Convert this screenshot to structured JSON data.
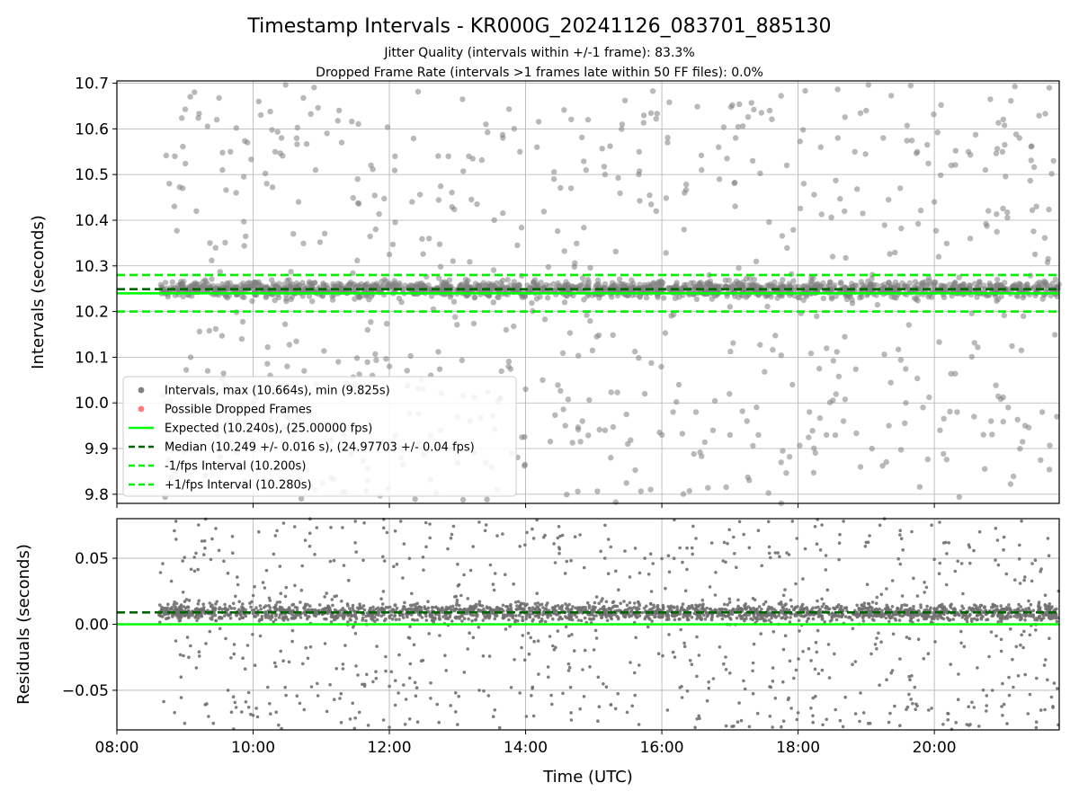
{
  "figure": {
    "title": "Timestamp Intervals - KR000G_20241126_083701_885130",
    "subtitle_1": "Jitter Quality (intervals within +/-1 frame): 83.3%",
    "subtitle_2": "Dropped Frame Rate (intervals >1 frames late within 50 FF files): 0.0%",
    "colors": {
      "points": "#808080",
      "dropped": "#ff4d4d",
      "expected": "#00ff00",
      "median": "#006400",
      "fps_band": "#00ee00",
      "grid": "#b0b0b0"
    }
  },
  "chart_data": [
    {
      "type": "scatter",
      "panel": "intervals",
      "xlabel": "",
      "ylabel": "Intervals (seconds)",
      "xlim": [
        "08:00",
        "21:50"
      ],
      "ylim": [
        9.78,
        10.705
      ],
      "xticks": [
        "08:00",
        "10:00",
        "12:00",
        "14:00",
        "16:00",
        "18:00",
        "20:00"
      ],
      "xticklabels_visible": false,
      "yticks": [
        9.8,
        9.9,
        10.0,
        10.1,
        10.2,
        10.3,
        10.4,
        10.5,
        10.6,
        10.7
      ],
      "yticklabels": [
        "9.8",
        "9.9",
        "10.0",
        "10.1",
        "10.2",
        "10.3",
        "10.4",
        "10.5",
        "10.6",
        "10.7"
      ],
      "grid": true,
      "legend_position": "lower-left",
      "x_range_of_points": [
        "08:37",
        "21:50"
      ],
      "series": [
        {
          "name": "Intervals, max (10.664s), min (9.825s)",
          "kind": "scatter",
          "color": "#808080",
          "max": 10.664,
          "min": 9.825,
          "cluster_center": 10.249,
          "cluster_spread": 0.016,
          "points": [
            [
              "08:51",
              10.54
            ],
            [
              "08:58",
              10.47
            ],
            [
              "09:10",
              10.42
            ],
            [
              "09:22",
              10.35
            ],
            [
              "09:28",
              10.62
            ],
            [
              "09:33",
              10.51
            ],
            [
              "09:40",
              10.55
            ],
            [
              "09:45",
              10.46
            ],
            [
              "09:55",
              10.57
            ],
            [
              "10:05",
              10.66
            ],
            [
              "10:12",
              10.48
            ],
            [
              "10:25",
              10.58
            ],
            [
              "10:40",
              10.44
            ],
            [
              "10:55",
              10.51
            ],
            [
              "11:05",
              10.59
            ],
            [
              "11:18",
              10.57
            ],
            [
              "11:32",
              10.49
            ],
            [
              "11:48",
              10.38
            ],
            [
              "12:05",
              10.54
            ],
            [
              "12:20",
              10.44
            ],
            [
              "12:35",
              10.36
            ],
            [
              "12:52",
              10.54
            ],
            [
              "13:10",
              10.54
            ],
            [
              "13:25",
              10.61
            ],
            [
              "13:40",
              10.58
            ],
            [
              "13:55",
              10.55
            ],
            [
              "14:10",
              10.56
            ],
            [
              "14:25",
              10.49
            ],
            [
              "14:40",
              10.47
            ],
            [
              "14:55",
              10.62
            ],
            [
              "15:10",
              10.5
            ],
            [
              "15:25",
              10.61
            ],
            [
              "15:40",
              10.55
            ],
            [
              "15:55",
              10.42
            ],
            [
              "16:05",
              10.57
            ],
            [
              "16:20",
              10.46
            ],
            [
              "16:35",
              10.51
            ],
            [
              "16:50",
              10.56
            ],
            [
              "17:05",
              10.58
            ],
            [
              "17:20",
              10.53
            ],
            [
              "17:35",
              10.64
            ],
            [
              "17:50",
              10.52
            ],
            [
              "18:05",
              10.48
            ],
            [
              "18:20",
              10.56
            ],
            [
              "18:35",
              10.58
            ],
            [
              "18:50",
              10.55
            ],
            [
              "19:00",
              10.64
            ],
            [
              "19:15",
              10.58
            ],
            [
              "19:30",
              10.47
            ],
            [
              "19:45",
              10.55
            ],
            [
              "20:00",
              10.44
            ],
            [
              "20:15",
              10.52
            ],
            [
              "20:30",
              10.55
            ],
            [
              "20:45",
              10.51
            ],
            [
              "21:00",
              10.55
            ],
            [
              "21:15",
              10.58
            ],
            [
              "21:30",
              10.43
            ],
            [
              "21:45",
              10.53
            ],
            [
              "09:05",
              10.1
            ],
            [
              "09:20",
              10.07
            ],
            [
              "09:35",
              10.04
            ],
            [
              "09:50",
              10.14
            ],
            [
              "10:00",
              10.0
            ],
            [
              "10:15",
              10.06
            ],
            [
              "10:30",
              10.08
            ],
            [
              "10:45",
              10.07
            ],
            [
              "11:00",
              10.02
            ],
            [
              "11:15",
              10.09
            ],
            [
              "11:30",
              10.04
            ],
            [
              "11:45",
              10.06
            ],
            [
              "12:00",
              10.08
            ],
            [
              "12:10",
              9.88
            ],
            [
              "12:30",
              10.03
            ],
            [
              "12:45",
              9.94
            ],
            [
              "13:00",
              9.97
            ],
            [
              "13:15",
              9.89
            ],
            [
              "13:25",
              9.87
            ],
            [
              "13:30",
              9.86
            ],
            [
              "13:45",
              10.08
            ],
            [
              "14:00",
              10.03
            ],
            [
              "14:15",
              10.05
            ],
            [
              "14:35",
              9.95
            ],
            [
              "14:50",
              9.96
            ],
            [
              "15:10",
              9.94
            ],
            [
              "15:15",
              9.88
            ],
            [
              "15:30",
              9.91
            ],
            [
              "15:45",
              10.02
            ],
            [
              "16:00",
              9.93
            ],
            [
              "16:15",
              10.04
            ],
            [
              "16:30",
              9.98
            ],
            [
              "16:45",
              9.94
            ],
            [
              "17:00",
              9.93
            ],
            [
              "17:15",
              9.96
            ],
            [
              "17:25",
              9.93
            ],
            [
              "17:45",
              9.87
            ],
            [
              "17:55",
              10.04
            ],
            [
              "18:10",
              9.98
            ],
            [
              "18:25",
              9.93
            ],
            [
              "18:40",
              9.96
            ],
            [
              "18:55",
              9.86
            ],
            [
              "19:05",
              9.9
            ],
            [
              "19:20",
              9.95
            ],
            [
              "19:35",
              10.0
            ],
            [
              "19:50",
              9.99
            ],
            [
              "20:05",
              9.94
            ],
            [
              "20:20",
              9.98
            ],
            [
              "20:35",
              9.97
            ],
            [
              "20:50",
              9.96
            ],
            [
              "21:05",
              9.99
            ],
            [
              "21:20",
              9.95
            ],
            [
              "21:35",
              9.98
            ],
            [
              "21:48",
              9.97
            ]
          ]
        },
        {
          "name": "Possible Dropped Frames",
          "kind": "scatter",
          "color": "#ff4d4d",
          "points": []
        },
        {
          "name": "Expected (10.240s), (25.00000 fps)",
          "kind": "hline",
          "style": "solid",
          "color": "#00ff00",
          "y": 10.24
        },
        {
          "name": "Median (10.249 +/- 0.016 s), (24.97703 +/- 0.04 fps)",
          "kind": "hline",
          "style": "dashed",
          "color": "#006400",
          "y": 10.249
        },
        {
          "name": "-1/fps Interval (10.200s)",
          "kind": "hline",
          "style": "dashed",
          "color": "#00ee00",
          "y": 10.2
        },
        {
          "name": "+1/fps Interval (10.280s)",
          "kind": "hline",
          "style": "dashed",
          "color": "#00ee00",
          "y": 10.28
        }
      ]
    },
    {
      "type": "scatter",
      "panel": "residuals",
      "xlabel": "Time (UTC)",
      "ylabel": "Residuals (seconds)",
      "xlim": [
        "08:00",
        "21:50"
      ],
      "ylim": [
        -0.08,
        0.08
      ],
      "xticks": [
        "08:00",
        "10:00",
        "12:00",
        "14:00",
        "16:00",
        "18:00",
        "20:00"
      ],
      "xticklabels": [
        "08:00",
        "10:00",
        "12:00",
        "14:00",
        "16:00",
        "18:00",
        "20:00"
      ],
      "yticks": [
        -0.05,
        0.0,
        0.05
      ],
      "yticklabels": [
        "−0.05",
        "0.00",
        "0.05"
      ],
      "grid": true,
      "x_range_of_points": [
        "08:37",
        "21:50"
      ],
      "series": [
        {
          "kind": "scatter",
          "color": "#707070",
          "cluster_center": 0.009,
          "cluster_spread": 0.006,
          "points": [
            [
              "09:15",
              0.063
            ],
            [
              "09:30",
              0.056
            ],
            [
              "09:42",
              0.054
            ],
            [
              "10:05",
              0.07
            ],
            [
              "10:50",
              0.069
            ],
            [
              "11:30",
              0.078
            ],
            [
              "11:55",
              0.073
            ],
            [
              "12:10",
              0.078
            ],
            [
              "12:55",
              0.068
            ],
            [
              "13:35",
              0.067
            ],
            [
              "13:55",
              0.059
            ],
            [
              "14:10",
              0.079
            ],
            [
              "14:25",
              0.061
            ],
            [
              "15:10",
              0.075
            ],
            [
              "15:45",
              0.05
            ],
            [
              "16:30",
              0.065
            ],
            [
              "16:55",
              0.062
            ],
            [
              "17:25",
              0.071
            ],
            [
              "17:55",
              0.078
            ],
            [
              "18:15",
              0.074
            ],
            [
              "18:40",
              0.078
            ],
            [
              "19:00",
              0.062
            ],
            [
              "19:30",
              0.071
            ],
            [
              "20:10",
              0.062
            ],
            [
              "20:40",
              0.07
            ],
            [
              "21:15",
              0.06
            ],
            [
              "21:40",
              0.065
            ],
            [
              "09:25",
              -0.075
            ],
            [
              "09:45",
              -0.063
            ],
            [
              "10:00",
              -0.069
            ],
            [
              "10:25",
              -0.079
            ],
            [
              "11:05",
              -0.066
            ],
            [
              "11:30",
              -0.071
            ],
            [
              "12:00",
              -0.078
            ],
            [
              "12:25",
              -0.074
            ],
            [
              "13:00",
              -0.076
            ],
            [
              "13:55",
              -0.052
            ],
            [
              "14:05",
              -0.054
            ],
            [
              "14:40",
              -0.067
            ],
            [
              "15:15",
              -0.061
            ],
            [
              "16:05",
              -0.065
            ],
            [
              "16:40",
              -0.058
            ],
            [
              "17:10",
              -0.073
            ],
            [
              "17:40",
              -0.056
            ],
            [
              "18:00",
              -0.067
            ],
            [
              "18:25",
              -0.072
            ],
            [
              "18:55",
              -0.052
            ],
            [
              "19:25",
              -0.062
            ],
            [
              "19:55",
              -0.065
            ],
            [
              "20:35",
              -0.063
            ],
            [
              "21:00",
              -0.069
            ],
            [
              "21:30",
              -0.074
            ],
            [
              "09:10",
              -0.033
            ],
            [
              "10:20",
              -0.032
            ],
            [
              "11:40",
              -0.038
            ],
            [
              "12:50",
              -0.035
            ],
            [
              "14:20",
              -0.04
            ],
            [
              "15:40",
              -0.031
            ],
            [
              "17:00",
              -0.037
            ],
            [
              "18:15",
              -0.034
            ],
            [
              "19:40",
              -0.039
            ],
            [
              "21:00",
              -0.045
            ]
          ]
        },
        {
          "name": "Expected",
          "kind": "hline",
          "style": "solid",
          "color": "#00ff00",
          "y": 0.0
        },
        {
          "name": "Median",
          "kind": "hline",
          "style": "dashed",
          "color": "#006400",
          "y": 0.009
        }
      ]
    }
  ]
}
